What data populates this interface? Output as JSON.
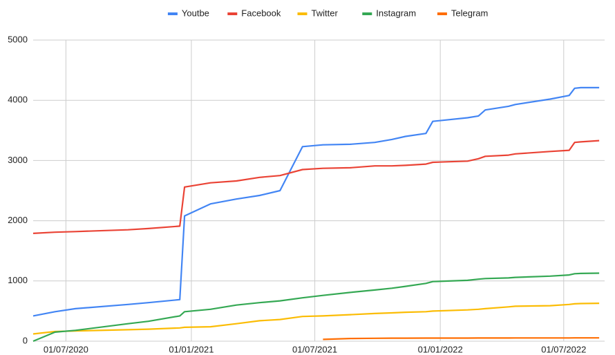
{
  "chart_data": {
    "type": "line",
    "x": [
      "14/05/2020",
      "15/06/2020",
      "15/07/2020",
      "30/09/2020",
      "30/10/2020",
      "15/12/2020",
      "22/12/2020",
      "29/01/2021",
      "08/03/2021",
      "11/04/2021",
      "11/05/2021",
      "13/06/2021",
      "13/07/2021",
      "22/08/2021",
      "27/09/2021",
      "22/10/2021",
      "11/11/2021",
      "11/12/2021",
      "21/12/2021",
      "10/02/2022",
      "26/02/2022",
      "08/03/2022",
      "11/04/2022",
      "21/04/2022",
      "11/06/2022",
      "09/07/2022",
      "17/07/2022",
      "26/07/2022",
      "22/08/2022"
    ],
    "series": [
      {
        "name": "Youtbe",
        "color": "#4285f4",
        "values": [
          420,
          490,
          540,
          610,
          640,
          690,
          2080,
          2280,
          2360,
          2420,
          2500,
          3230,
          3260,
          3270,
          3300,
          3350,
          3400,
          3450,
          3650,
          3710,
          3740,
          3840,
          3900,
          3930,
          4020,
          4080,
          4200,
          4210,
          4210
        ]
      },
      {
        "name": "Facebook",
        "color": "#ea4335",
        "values": [
          1790,
          1810,
          1820,
          1850,
          1870,
          1910,
          2560,
          2630,
          2660,
          2720,
          2750,
          2850,
          2870,
          2880,
          2910,
          2910,
          2920,
          2940,
          2970,
          2990,
          3030,
          3070,
          3090,
          3110,
          3150,
          3170,
          3300,
          3310,
          3330
        ]
      },
      {
        "name": "Twitter",
        "color": "#fbbc04",
        "values": [
          120,
          160,
          170,
          190,
          200,
          220,
          230,
          240,
          290,
          340,
          360,
          410,
          420,
          440,
          460,
          470,
          480,
          490,
          500,
          520,
          530,
          540,
          570,
          580,
          590,
          610,
          620,
          625,
          630
        ]
      },
      {
        "name": "Instagram",
        "color": "#34a853",
        "values": [
          0,
          150,
          180,
          290,
          330,
          420,
          490,
          530,
          600,
          640,
          670,
          720,
          760,
          810,
          850,
          880,
          910,
          960,
          990,
          1010,
          1030,
          1040,
          1050,
          1060,
          1080,
          1100,
          1120,
          1125,
          1130
        ]
      },
      {
        "name": "Telegram",
        "color": "#ff6d01",
        "values": [
          null,
          null,
          null,
          null,
          null,
          null,
          null,
          null,
          null,
          null,
          null,
          null,
          30,
          45,
          48,
          50,
          50,
          52,
          52,
          52,
          53,
          53,
          53,
          54,
          54,
          54,
          55,
          55,
          55
        ]
      }
    ],
    "xlim": [
      "14/05/2020",
      "30/08/2022"
    ],
    "xticks": [
      "01/07/2020",
      "01/01/2021",
      "01/07/2021",
      "01/01/2022",
      "01/07/2022"
    ],
    "ylim": [
      0,
      5000
    ],
    "yticks": [
      0,
      1000,
      2000,
      3000,
      4000,
      5000
    ],
    "grid": true,
    "legend": "top"
  }
}
